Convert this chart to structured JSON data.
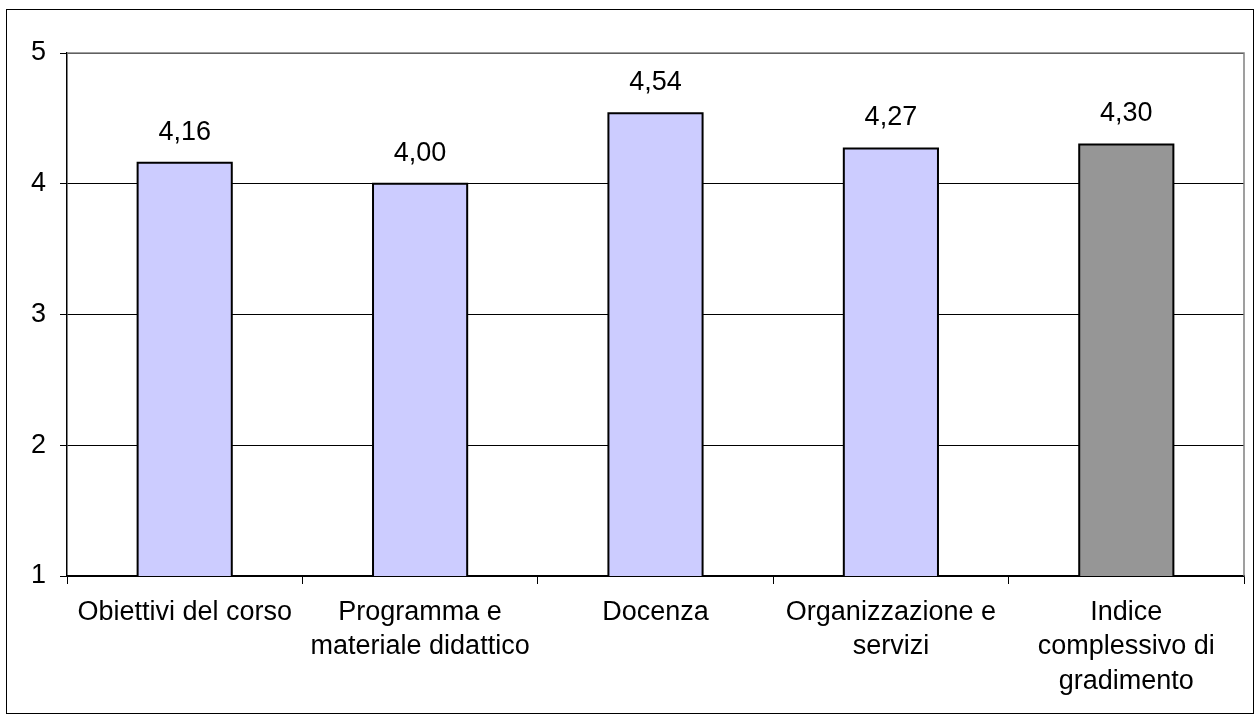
{
  "chart_data": {
    "type": "bar",
    "categories": [
      "Obiettivi del corso",
      "Programma e materiale didattico",
      "Docenza",
      "Organizzazione e servizi",
      "Indice complessivo di gradimento"
    ],
    "values": [
      4.16,
      4.0,
      4.54,
      4.27,
      4.3
    ],
    "colors": [
      "#ccccff",
      "#ccccff",
      "#ccccff",
      "#ccccff",
      "#969696"
    ],
    "value_labels": [
      "4,16",
      "4,00",
      "4,54",
      "4,27",
      "4,30"
    ],
    "ylim": [
      1,
      5
    ],
    "yticks": [
      1,
      2,
      3,
      4,
      5
    ],
    "grid": "y"
  }
}
